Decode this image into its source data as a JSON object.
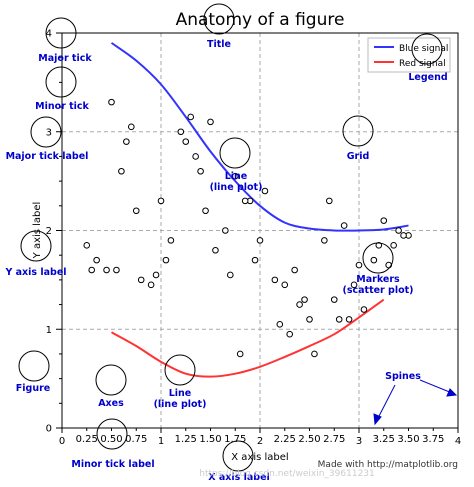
{
  "chart_data": {
    "type": "line",
    "title": "Anatomy of a figure",
    "xlabel": "X axis label",
    "ylabel": "Y axis label",
    "xlim": [
      0,
      4
    ],
    "ylim": [
      0,
      4
    ],
    "grid": true,
    "legend_position": "top-right",
    "x_major_ticks": [
      0,
      1,
      2,
      3,
      4
    ],
    "x_major_tick_labels": [
      "0",
      "1",
      "2",
      "3",
      "4"
    ],
    "x_minor_tick_labels": [
      "0.25",
      "0.50",
      "0.75",
      "1.25",
      "1.50",
      "1.75",
      "2.25",
      "2.50",
      "2.75",
      "3.25",
      "3.50",
      "3.75"
    ],
    "y_major_ticks": [
      0,
      1,
      2,
      3,
      4
    ],
    "y_major_tick_labels": [
      "0",
      "1",
      "2",
      "3",
      "4"
    ],
    "series": [
      {
        "name": "Blue signal",
        "color": "#3333ff",
        "x": [
          0.5,
          0.75,
          1.0,
          1.25,
          1.5,
          1.75,
          2.0,
          2.25,
          2.5,
          2.75,
          3.0,
          3.25,
          3.5
        ],
        "y": [
          3.9,
          3.72,
          3.48,
          3.15,
          2.8,
          2.5,
          2.25,
          2.08,
          2.02,
          2.0,
          2.0,
          2.01,
          2.05
        ]
      },
      {
        "name": "Red signal",
        "color": "#ff3333",
        "x": [
          0.5,
          0.75,
          1.0,
          1.25,
          1.5,
          1.75,
          2.0,
          2.25,
          2.5,
          2.75,
          3.0,
          3.25
        ],
        "y": [
          0.97,
          0.83,
          0.67,
          0.55,
          0.52,
          0.55,
          0.62,
          0.72,
          0.83,
          0.95,
          1.12,
          1.3
        ]
      },
      {
        "name": "Markers",
        "type": "scatter",
        "x": [
          0.25,
          0.5,
          0.75,
          1.0,
          1.25,
          1.5,
          1.75,
          2.0,
          2.25,
          2.5,
          2.75,
          3.0,
          3.25,
          3.5,
          0.35,
          0.6,
          0.9,
          1.1,
          1.4,
          1.65,
          1.9,
          2.15,
          2.4,
          2.65,
          2.9,
          3.15,
          3.4,
          0.45,
          0.7,
          0.95,
          1.2,
          1.45,
          1.7,
          1.95,
          2.2,
          2.45,
          2.7,
          2.95,
          3.2,
          3.45,
          0.55,
          0.8,
          1.05,
          1.3,
          1.55,
          1.8,
          2.05,
          2.3,
          2.55,
          2.8,
          3.05,
          3.3,
          0.3,
          0.65,
          1.35,
          1.85,
          2.35,
          2.85,
          3.35
        ],
        "y": [
          1.85,
          3.3,
          2.2,
          2.3,
          2.9,
          3.1,
          2.55,
          1.9,
          1.45,
          1.1,
          1.3,
          1.65,
          2.1,
          1.95,
          1.7,
          2.6,
          1.45,
          1.9,
          2.6,
          2.0,
          2.3,
          1.5,
          1.25,
          1.9,
          1.1,
          1.7,
          2.0,
          1.6,
          3.05,
          1.55,
          3.0,
          2.2,
          1.55,
          1.7,
          1.05,
          1.3,
          2.3,
          1.45,
          1.85,
          1.95,
          1.6,
          1.5,
          1.7,
          3.15,
          1.8,
          0.75,
          2.4,
          0.95,
          0.75,
          1.1,
          1.2,
          1.65,
          1.6,
          2.9,
          2.75,
          2.3,
          1.6,
          2.05,
          1.85
        ]
      }
    ],
    "annotations": [
      "Major tick",
      "Minor tick",
      "Major tick label",
      "Title",
      "Legend",
      "Grid",
      "Line (line plot)",
      "Y axis label",
      "Markers (scatter plot)",
      "Figure",
      "Axes",
      "Spines",
      "Minor tick label",
      "X axis label"
    ]
  },
  "legend": {
    "blue_label": "Blue signal",
    "red_label": "Red signal"
  },
  "annotation_labels": {
    "major_tick": "Major tick",
    "minor_tick": "Minor tick",
    "major_tick_label": "Major tick label",
    "title": "Title",
    "legend": "Legend",
    "grid": "Grid",
    "line_top_1": "Line",
    "line_top_2": "(line plot)",
    "y_axis_label": "Y axis label",
    "markers_1": "Markers",
    "markers_2": "(scatter plot)",
    "figure": "Figure",
    "axes": "Axes",
    "line_bottom_1": "Line",
    "line_bottom_2": "(line plot)",
    "spines": "Spines",
    "minor_tick_label": "Minor tick label",
    "x_axis_label": "X axis label"
  },
  "footer": {
    "credit": "Made with http://matplotlib.org"
  },
  "watermark": "https://blog.csdn.net/weixin_39611231",
  "colors": {
    "annotation": "#0000cc",
    "blue_signal": "#3333ff",
    "red_signal": "#ff3333",
    "grid": "#aaaaaa"
  }
}
